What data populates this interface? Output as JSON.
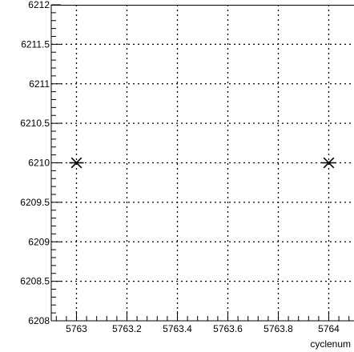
{
  "chart_data": {
    "type": "scatter",
    "title": "",
    "xlabel": "cyclenum",
    "ylabel": "",
    "xlim": [
      5762.9,
      5764.1
    ],
    "ylim": [
      6208,
      6212
    ],
    "x_ticks": [
      5763,
      5763.2,
      5763.4,
      5763.6,
      5763.8,
      5764
    ],
    "x_tick_labels": [
      "5763",
      "5763.2",
      "5763.4",
      "5763.6",
      "5763.8",
      "5764"
    ],
    "y_ticks": [
      6208,
      6208.5,
      6209,
      6209.5,
      6210,
      6210.5,
      6211,
      6211.5,
      6212
    ],
    "y_tick_labels": [
      "6208",
      "6208.5",
      "6209",
      "6209.5",
      "6210",
      "6210.5",
      "6211",
      "6211.5",
      "6212"
    ],
    "grid": true,
    "marker": "asterisk",
    "series": [
      {
        "x": [
          5763,
          5764
        ],
        "y": [
          6210,
          6210
        ]
      }
    ],
    "colors": {
      "axis": "#000000",
      "grid": "#000000",
      "marker": "#000000"
    }
  }
}
